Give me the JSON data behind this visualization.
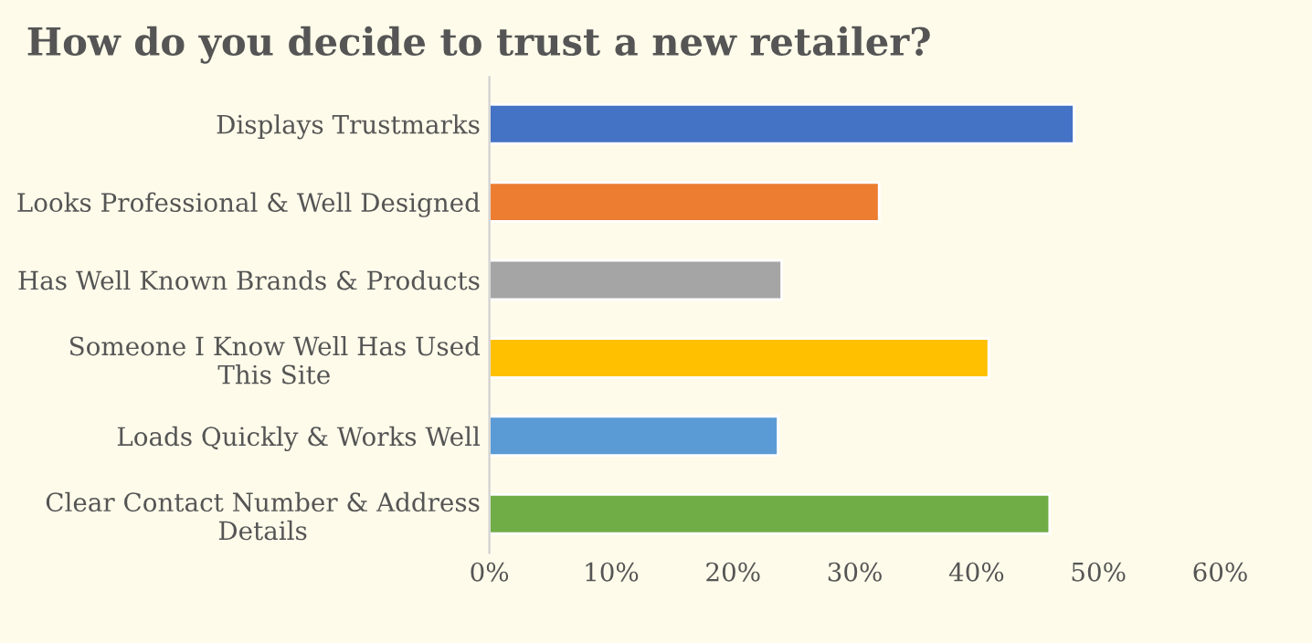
{
  "chart_data": {
    "type": "bar",
    "orientation": "horizontal",
    "title": "How do you decide to trust a new retailer?",
    "categories": [
      "Displays Trustmarks",
      "Looks Professional & Well Designed",
      "Has Well Known Brands & Products",
      "Someone I Know Well Has Used\nThis Site",
      "Loads Quickly & Works Well",
      "Clear Contact Number & Address\nDetails"
    ],
    "values": [
      48,
      32,
      24,
      41,
      23.7,
      46
    ],
    "colors": [
      "#4472c4",
      "#ed7d31",
      "#a5a5a5",
      "#ffc000",
      "#5b9bd5",
      "#70ad47"
    ],
    "xlim": [
      0,
      60
    ],
    "xticks": [
      {
        "value": 0,
        "label": "0%"
      },
      {
        "value": 10,
        "label": "10%"
      },
      {
        "value": 20,
        "label": "20%"
      },
      {
        "value": 30,
        "label": "30%"
      },
      {
        "value": 40,
        "label": "40%"
      },
      {
        "value": 50,
        "label": "50%"
      },
      {
        "value": 60,
        "label": "60%"
      }
    ],
    "grid": false,
    "legend": false
  }
}
